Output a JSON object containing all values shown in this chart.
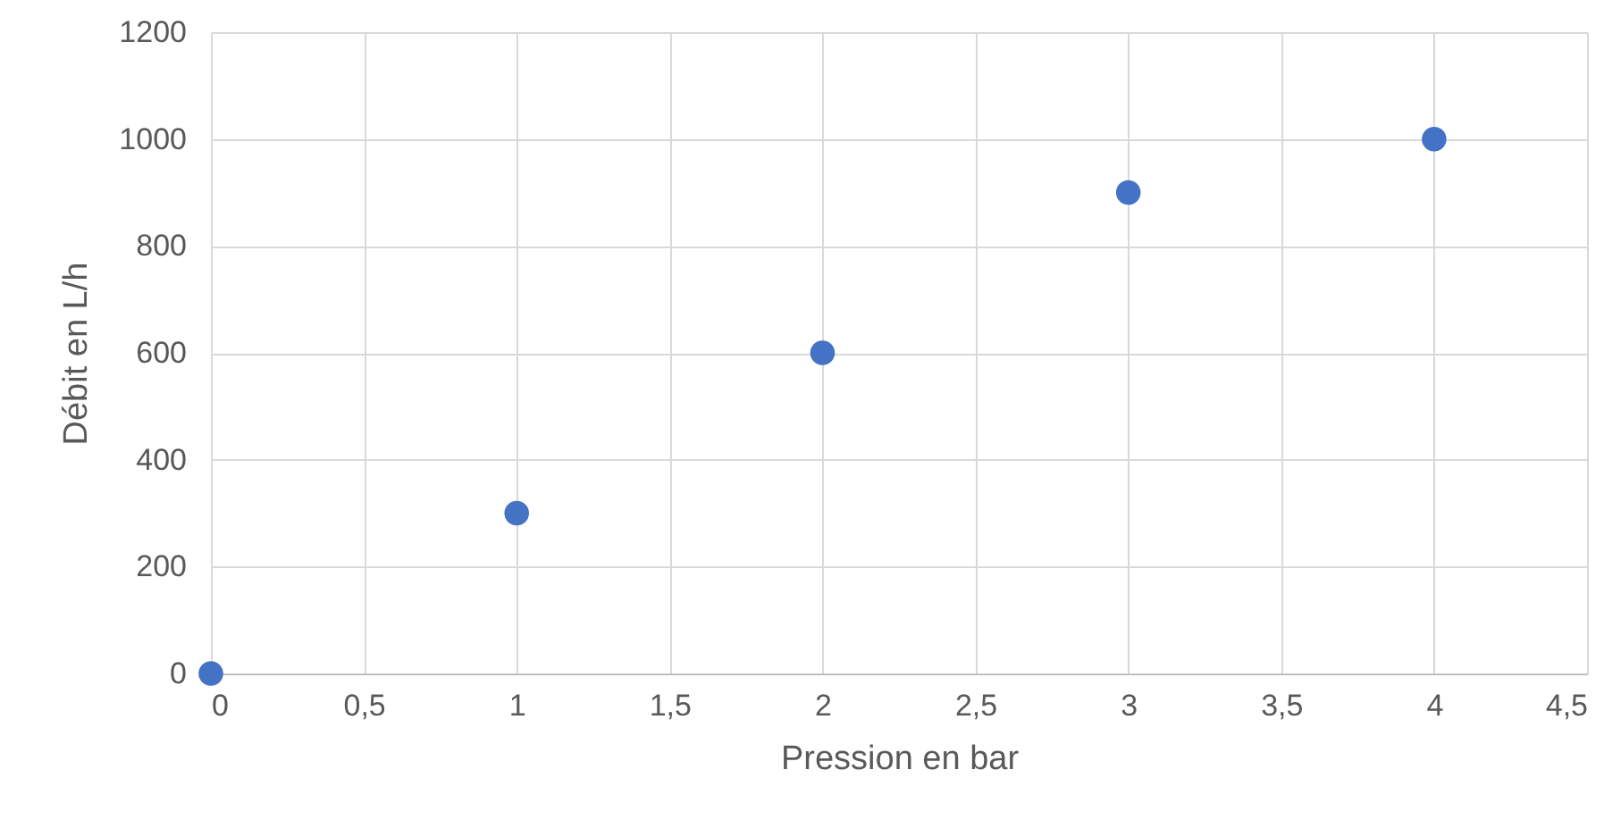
{
  "chart_data": {
    "type": "scatter",
    "xlabel": "Pression en bar",
    "ylabel": "Débit en L/h",
    "x": [
      0,
      1,
      2,
      3,
      4
    ],
    "series": [
      {
        "color": "#4472c4",
        "values": [
          0,
          300,
          600,
          900,
          1000
        ]
      }
    ],
    "xlim": [
      0,
      4.5
    ],
    "xticks": [
      0,
      {
        "value": 0.5,
        "label": "0,5"
      },
      1,
      {
        "value": 1.5,
        "label": "1,5"
      },
      2,
      {
        "value": 2.5,
        "label": "2,5"
      },
      3,
      {
        "value": 3.5,
        "label": "3,5"
      },
      4,
      {
        "value": 4.5,
        "label": "4,5"
      }
    ],
    "ylim": [
      0,
      1200
    ],
    "yticks": [
      0,
      200,
      400,
      600,
      800,
      1000,
      1200
    ],
    "grid": true,
    "marker": "circle"
  }
}
